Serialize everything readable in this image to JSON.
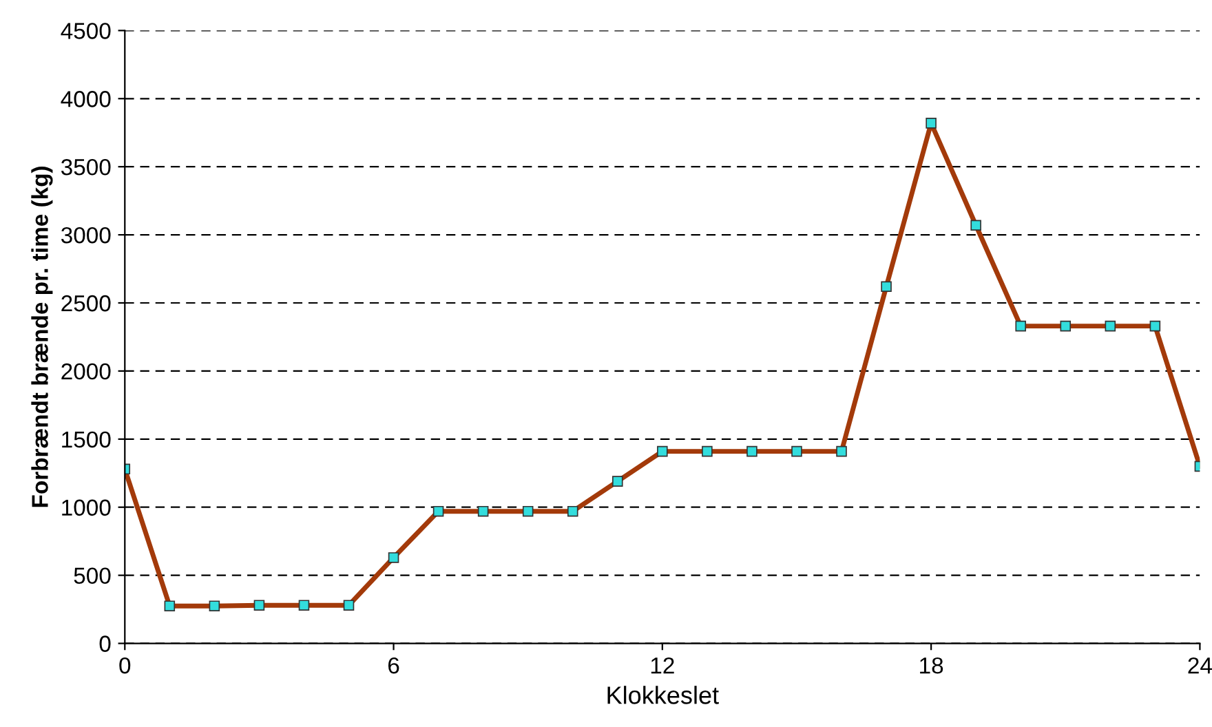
{
  "chart_data": {
    "type": "line",
    "xlabel": "Klokkeslet",
    "ylabel": "Forbrændt brænde pr. time (kg)",
    "x": [
      0,
      1,
      2,
      3,
      4,
      5,
      6,
      7,
      8,
      9,
      10,
      11,
      12,
      13,
      14,
      15,
      16,
      17,
      18,
      19,
      20,
      21,
      22,
      23,
      24
    ],
    "series": [
      {
        "color": "#a33a0a",
        "values": [
          1280,
          275,
          275,
          280,
          280,
          280,
          630,
          970,
          970,
          970,
          970,
          1190,
          1410,
          1410,
          1410,
          1410,
          1410,
          2620,
          3820,
          3070,
          2330,
          2330,
          2330,
          2330,
          1300
        ]
      }
    ],
    "xlim": [
      0,
      24
    ],
    "xticks": [
      0,
      6,
      12,
      18,
      24
    ],
    "ylim": [
      0,
      4500
    ],
    "yticks": [
      0,
      500,
      1000,
      1500,
      2000,
      2500,
      3000,
      3500,
      4000,
      4500
    ],
    "grid": "y",
    "marker": "square",
    "line_style": "solid",
    "legend": false
  }
}
